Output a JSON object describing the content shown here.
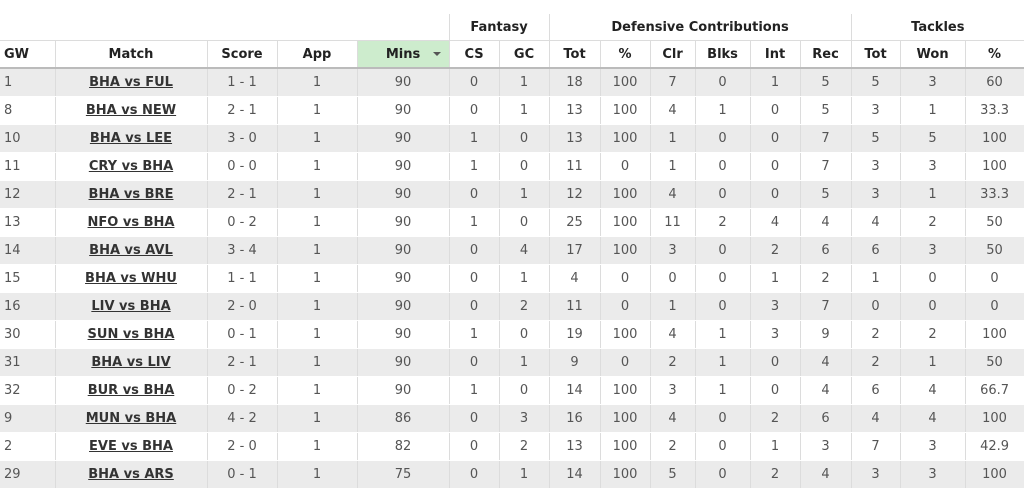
{
  "groups": {
    "fantasy": "Fantasy",
    "defensive": "Defensive Contributions",
    "tackles": "Tackles"
  },
  "columns": [
    "GW",
    "Match",
    "Score",
    "App",
    "Mins",
    "CS",
    "GC",
    "Tot",
    "%",
    "Clr",
    "Blks",
    "Int",
    "Rec",
    "Tot",
    "Won",
    "%"
  ],
  "sorted_column": "Mins",
  "rows": [
    [
      "1",
      "BHA vs FUL",
      "1 - 1",
      "1",
      "90",
      "0",
      "1",
      "18",
      "100",
      "7",
      "0",
      "1",
      "5",
      "5",
      "3",
      "60"
    ],
    [
      "8",
      "BHA vs NEW",
      "2 - 1",
      "1",
      "90",
      "0",
      "1",
      "13",
      "100",
      "4",
      "1",
      "0",
      "5",
      "3",
      "1",
      "33.3"
    ],
    [
      "10",
      "BHA vs LEE",
      "3 - 0",
      "1",
      "90",
      "1",
      "0",
      "13",
      "100",
      "1",
      "0",
      "0",
      "7",
      "5",
      "5",
      "100"
    ],
    [
      "11",
      "CRY vs BHA",
      "0 - 0",
      "1",
      "90",
      "1",
      "0",
      "11",
      "0",
      "1",
      "0",
      "0",
      "7",
      "3",
      "3",
      "100"
    ],
    [
      "12",
      "BHA vs BRE",
      "2 - 1",
      "1",
      "90",
      "0",
      "1",
      "12",
      "100",
      "4",
      "0",
      "0",
      "5",
      "3",
      "1",
      "33.3"
    ],
    [
      "13",
      "NFO vs BHA",
      "0 - 2",
      "1",
      "90",
      "1",
      "0",
      "25",
      "100",
      "11",
      "2",
      "4",
      "4",
      "4",
      "2",
      "50"
    ],
    [
      "14",
      "BHA vs AVL",
      "3 - 4",
      "1",
      "90",
      "0",
      "4",
      "17",
      "100",
      "3",
      "0",
      "2",
      "6",
      "6",
      "3",
      "50"
    ],
    [
      "15",
      "BHA vs WHU",
      "1 - 1",
      "1",
      "90",
      "0",
      "1",
      "4",
      "0",
      "0",
      "0",
      "1",
      "2",
      "1",
      "0",
      "0"
    ],
    [
      "16",
      "LIV vs BHA",
      "2 - 0",
      "1",
      "90",
      "0",
      "2",
      "11",
      "0",
      "1",
      "0",
      "3",
      "7",
      "0",
      "0",
      "0"
    ],
    [
      "30",
      "SUN vs BHA",
      "0 - 1",
      "1",
      "90",
      "1",
      "0",
      "19",
      "100",
      "4",
      "1",
      "3",
      "9",
      "2",
      "2",
      "100"
    ],
    [
      "31",
      "BHA vs LIV",
      "2 - 1",
      "1",
      "90",
      "0",
      "1",
      "9",
      "0",
      "2",
      "1",
      "0",
      "4",
      "2",
      "1",
      "50"
    ],
    [
      "32",
      "BUR vs BHA",
      "0 - 2",
      "1",
      "90",
      "1",
      "0",
      "14",
      "100",
      "3",
      "1",
      "0",
      "4",
      "6",
      "4",
      "66.7"
    ],
    [
      "9",
      "MUN vs BHA",
      "4 - 2",
      "1",
      "86",
      "0",
      "3",
      "16",
      "100",
      "4",
      "0",
      "2",
      "6",
      "4",
      "4",
      "100"
    ],
    [
      "2",
      "EVE vs BHA",
      "2 - 0",
      "1",
      "82",
      "0",
      "2",
      "13",
      "100",
      "2",
      "0",
      "1",
      "3",
      "7",
      "3",
      "42.9"
    ],
    [
      "29",
      "BHA vs ARS",
      "0 - 1",
      "1",
      "75",
      "0",
      "1",
      "14",
      "100",
      "5",
      "0",
      "2",
      "4",
      "3",
      "3",
      "100"
    ]
  ]
}
